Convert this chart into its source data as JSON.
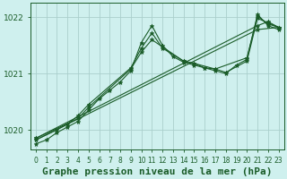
{
  "title": "Graphe pression niveau de la mer (hPa)",
  "bg_color": "#cff0ee",
  "grid_color": "#aacfcc",
  "line_color": "#1a5c28",
  "xlim": [
    -0.5,
    23.5
  ],
  "ylim": [
    1019.65,
    1022.25
  ],
  "yticks": [
    1020,
    1021,
    1022
  ],
  "xticks": [
    0,
    1,
    2,
    3,
    4,
    5,
    6,
    7,
    8,
    9,
    10,
    11,
    12,
    13,
    14,
    15,
    16,
    17,
    18,
    19,
    20,
    21,
    22,
    23
  ],
  "series": [
    {
      "x": [
        0,
        1,
        2,
        3,
        4,
        5,
        6,
        7,
        8,
        9,
        10,
        11,
        12,
        13,
        14,
        15,
        16,
        17,
        18,
        19,
        20,
        21,
        22,
        23
      ],
      "y": [
        1019.75,
        1019.82,
        1019.95,
        1020.05,
        1020.15,
        1020.35,
        1020.55,
        1020.7,
        1020.85,
        1021.05,
        1021.55,
        1021.85,
        1021.5,
        1021.3,
        1021.2,
        1021.15,
        1021.1,
        1021.05,
        1021.0,
        1021.15,
        1021.25,
        1022.05,
        1021.85,
        1021.78
      ]
    },
    {
      "x": [
        0,
        2,
        3,
        4,
        5,
        9,
        10,
        11,
        12,
        14,
        15,
        17,
        18,
        20,
        21,
        22,
        23
      ],
      "y": [
        1019.82,
        1020.0,
        1020.1,
        1020.25,
        1020.45,
        1021.1,
        1021.45,
        1021.72,
        1021.45,
        1021.22,
        1021.18,
        1021.08,
        1021.02,
        1021.22,
        1021.98,
        1021.9,
        1021.82
      ]
    },
    {
      "x": [
        0,
        21,
        23
      ],
      "y": [
        1019.82,
        1021.78,
        1021.82
      ]
    },
    {
      "x": [
        0,
        21,
        22,
        23
      ],
      "y": [
        1019.85,
        1021.85,
        1021.92,
        1021.82
      ]
    },
    {
      "x": [
        0,
        4,
        5,
        9,
        10,
        11,
        14,
        15,
        16,
        17,
        20,
        21,
        22,
        23
      ],
      "y": [
        1019.85,
        1020.2,
        1020.4,
        1021.08,
        1021.38,
        1021.6,
        1021.22,
        1021.18,
        1021.1,
        1021.08,
        1021.28,
        1022.02,
        1021.88,
        1021.82
      ]
    }
  ],
  "marker": "*",
  "markersize": 3.5,
  "linewidth": 0.8,
  "title_fontsize": 8,
  "tick_fontsize": 5.5
}
